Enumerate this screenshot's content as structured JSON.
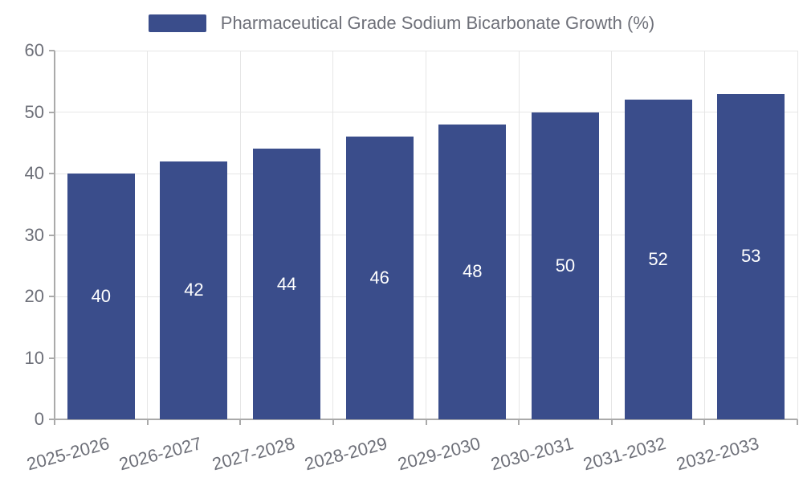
{
  "chart_data": {
    "type": "bar",
    "title": "",
    "legend": [
      "Pharmaceutical Grade Sodium Bicarbonate Growth (%)"
    ],
    "legend_position": "top-center",
    "categories": [
      "2025-2026",
      "2026-2027",
      "2027-2028",
      "2028-2029",
      "2029-2030",
      "2030-2031",
      "2031-2032",
      "2032-2033"
    ],
    "values": [
      40,
      42,
      44,
      46,
      48,
      50,
      52,
      53
    ],
    "xlabel": "",
    "ylabel": "",
    "ylim": [
      0,
      60
    ],
    "yticks": [
      0,
      10,
      20,
      30,
      40,
      50,
      60
    ],
    "grid": "on",
    "x_label_rotation_deg": 15,
    "colors": {
      "bar": "#3a4d8b",
      "value_label": "#ffffff",
      "axis_line": "#aaaaaa",
      "grid_line": "#e6e6e6",
      "tick_label": "#6e7079",
      "legend_text": "#6e7079",
      "background": "#ffffff"
    }
  }
}
